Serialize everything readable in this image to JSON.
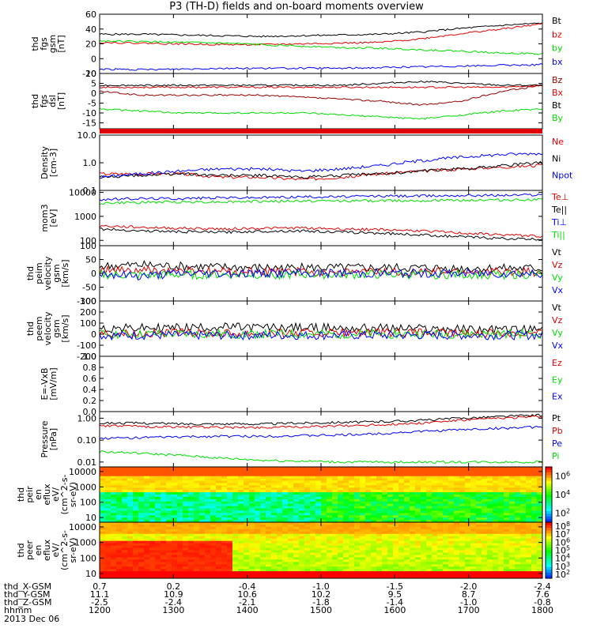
{
  "title": "P3 (TH-D) fields and on-board moments overview",
  "date_label": "2013 Dec 06",
  "ephemeris": {
    "rows": [
      {
        "label": "thd_X-GSM",
        "values": [
          "0.7",
          "0.2",
          "-0.4",
          "-1.0",
          "-1.5",
          "-2.0",
          "-2.4"
        ]
      },
      {
        "label": "thd_Y-GSM",
        "values": [
          "11.1",
          "10.9",
          "10.6",
          "10.2",
          "9.5",
          "8.7",
          "7.6"
        ]
      },
      {
        "label": "thd_Z-GSM",
        "values": [
          "-2.5",
          "-2.4",
          "-2.1",
          "-1.8",
          "-1.4",
          "-1.0",
          "-0.8"
        ]
      },
      {
        "label": "hhmm",
        "values": [
          "1200",
          "1300",
          "1400",
          "1500",
          "1600",
          "1700",
          "1800"
        ]
      }
    ]
  },
  "colors": {
    "black": "#000000",
    "red": "#e00000",
    "green": "#00dd00",
    "blue": "#0000ff",
    "darkred": "#990000"
  },
  "chart_data": [
    {
      "type": "line",
      "id": "fgs_gsm",
      "ylabel": [
        "thd",
        "fgs",
        "gsm",
        "[nT]"
      ],
      "ylim": [
        -20,
        60
      ],
      "scale": "linear",
      "yticks": [
        "-20",
        "0",
        "20",
        "40",
        "60"
      ],
      "series": [
        {
          "name": "Bt",
          "color": "#000000",
          "values": [
            33,
            33,
            32,
            31,
            30,
            31,
            32,
            33,
            36,
            41,
            45,
            48
          ]
        },
        {
          "name": "bz",
          "color": "#e00000",
          "values": [
            22,
            21,
            20,
            19,
            19,
            20,
            21,
            22,
            27,
            34,
            40,
            47
          ]
        },
        {
          "name": "by",
          "color": "#00dd00",
          "values": [
            24,
            23,
            22,
            21,
            19,
            17,
            15,
            14,
            12,
            10,
            8,
            6
          ]
        },
        {
          "name": "bx",
          "color": "#0000ff",
          "values": [
            -14,
            -15,
            -14,
            -13,
            -13,
            -13,
            -13,
            -12,
            -11,
            -10,
            -9,
            -8
          ]
        }
      ]
    },
    {
      "type": "line",
      "id": "fgs_dsl",
      "ylabel": [
        "thd",
        "fgs",
        "dsl",
        "[nT]"
      ],
      "ylim": [
        -18,
        10
      ],
      "scale": "linear",
      "yticks": [
        "-15",
        "-10",
        "-5",
        "0",
        "5",
        "10"
      ],
      "series": [
        {
          "name": "Bz",
          "color": "#990000",
          "values": [
            1,
            -1,
            -1,
            -1,
            -1,
            -2,
            -3,
            -4,
            -6,
            -4,
            1,
            4
          ]
        },
        {
          "name": "Bx",
          "color": "#e00000",
          "values": [
            3,
            3,
            3,
            3,
            3,
            3,
            3,
            3,
            3,
            3,
            3,
            4
          ]
        },
        {
          "name": "Bt",
          "color": "#000000",
          "values": [
            4,
            4,
            4,
            4,
            4,
            4,
            4,
            5,
            6,
            5,
            4,
            4
          ]
        },
        {
          "name": "By",
          "color": "#00dd00",
          "values": [
            -8,
            -9,
            -10,
            -10,
            -10,
            -10,
            -11,
            -12,
            -13,
            -11,
            -9,
            -8
          ]
        }
      ]
    },
    {
      "type": "line",
      "id": "density",
      "ylabel": [
        "Density",
        "[cm-3]"
      ],
      "ylim": [
        0.1,
        10
      ],
      "scale": "log",
      "yticks": [
        "0.1",
        "1.0",
        "10.0"
      ],
      "series": [
        {
          "name": "Ne",
          "color": "#e00000",
          "values": [
            0.4,
            0.4,
            0.4,
            0.3,
            0.3,
            0.25,
            0.3,
            0.4,
            0.5,
            0.6,
            0.7,
            0.8
          ]
        },
        {
          "name": "Ni",
          "color": "#000000",
          "values": [
            0.3,
            0.35,
            0.4,
            0.35,
            0.35,
            0.3,
            0.35,
            0.4,
            0.5,
            0.6,
            0.8,
            1.0
          ]
        },
        {
          "name": "Npot",
          "color": "#0000ff",
          "values": [
            0.3,
            0.4,
            0.5,
            0.6,
            0.6,
            0.5,
            0.6,
            0.8,
            1.2,
            1.6,
            2.0,
            2.2
          ]
        }
      ]
    },
    {
      "type": "line",
      "id": "temperature",
      "ylabel": [
        "mom3",
        "[eV]"
      ],
      "ylim": [
        60,
        12000
      ],
      "scale": "log",
      "yticks": [
        "100",
        "1000",
        "10000"
      ],
      "series": [
        {
          "name": "Te⊥",
          "color": "#e00000",
          "values": [
            400,
            350,
            320,
            300,
            320,
            330,
            300,
            280,
            250,
            200,
            170,
            150
          ]
        },
        {
          "name": "Te||",
          "color": "#000000",
          "values": [
            300,
            250,
            230,
            220,
            240,
            250,
            220,
            200,
            170,
            140,
            120,
            110
          ]
        },
        {
          "name": "Ti⊥",
          "color": "#0000ff",
          "values": [
            5000,
            5500,
            5500,
            6000,
            6000,
            6500,
            6500,
            7000,
            7000,
            7500,
            7500,
            8000
          ]
        },
        {
          "name": "Ti||",
          "color": "#00dd00",
          "values": [
            3500,
            3800,
            4000,
            4000,
            4200,
            4300,
            4400,
            4500,
            4600,
            4700,
            4800,
            5000
          ]
        }
      ]
    },
    {
      "type": "line",
      "id": "peim_velocity",
      "ylabel": [
        "thd",
        "peim",
        "velocity",
        "gsm",
        "[km/s]"
      ],
      "ylim": [
        -100,
        100
      ],
      "scale": "linear",
      "yticks": [
        "-100",
        "-50",
        "0",
        "50",
        "100"
      ],
      "series": [
        {
          "name": "Vt",
          "color": "#000000",
          "values": [
            25,
            30,
            25,
            22,
            20,
            20,
            20,
            20,
            20,
            18,
            18,
            18
          ]
        },
        {
          "name": "Vz",
          "color": "#e00000",
          "values": [
            10,
            10,
            8,
            6,
            5,
            5,
            5,
            5,
            5,
            5,
            5,
            5
          ]
        },
        {
          "name": "Vy",
          "color": "#00dd00",
          "values": [
            -5,
            -8,
            -5,
            -5,
            -5,
            -5,
            -5,
            -5,
            -5,
            -5,
            -5,
            -5
          ]
        },
        {
          "name": "Vx",
          "color": "#0000ff",
          "values": [
            0,
            -10,
            0,
            0,
            0,
            0,
            0,
            0,
            0,
            0,
            0,
            0
          ]
        }
      ]
    },
    {
      "type": "line",
      "id": "peem_velocity",
      "ylabel": [
        "thd",
        "peem",
        "velocity",
        "gsm",
        "[km/s]"
      ],
      "ylim": [
        -200,
        300
      ],
      "scale": "linear",
      "yticks": [
        "-200",
        "-100",
        "0",
        "100",
        "200",
        "300"
      ],
      "series": [
        {
          "name": "Vt",
          "color": "#000000",
          "values": [
            50,
            55,
            60,
            65,
            60,
            60,
            55,
            55,
            50,
            45,
            40,
            40
          ]
        },
        {
          "name": "Vz",
          "color": "#e00000",
          "values": [
            10,
            10,
            10,
            10,
            10,
            10,
            10,
            10,
            10,
            10,
            10,
            10
          ]
        },
        {
          "name": "Vy",
          "color": "#00dd00",
          "values": [
            0,
            0,
            0,
            0,
            0,
            0,
            0,
            0,
            0,
            0,
            0,
            0
          ]
        },
        {
          "name": "Vx",
          "color": "#0000ff",
          "values": [
            -10,
            -10,
            -10,
            -10,
            -10,
            -10,
            -10,
            -10,
            -10,
            -10,
            -10,
            -10
          ]
        }
      ]
    },
    {
      "type": "line",
      "id": "efield",
      "ylabel": [
        "E=-VxB",
        "[mV/m]"
      ],
      "ylim": [
        0,
        1
      ],
      "scale": "linear",
      "yticks": [
        "0.0",
        "0.2",
        "0.4",
        "0.6",
        "0.8",
        "1.0"
      ],
      "series": [
        {
          "name": "Ez",
          "color": "#e00000",
          "values": []
        },
        {
          "name": "Ey",
          "color": "#00dd00",
          "values": []
        },
        {
          "name": "Ex",
          "color": "#0000ff",
          "values": []
        }
      ]
    },
    {
      "type": "line",
      "id": "pressure",
      "ylabel": [
        "Pressure",
        "[nPa]"
      ],
      "ylim": [
        0.006,
        2
      ],
      "scale": "log",
      "yticks": [
        "0.01",
        "0.10",
        "1.00"
      ],
      "series": [
        {
          "name": "Pt",
          "color": "#000000",
          "values": [
            0.6,
            0.6,
            0.55,
            0.55,
            0.55,
            0.6,
            0.65,
            0.7,
            0.8,
            1.0,
            1.2,
            1.4
          ]
        },
        {
          "name": "Pb",
          "color": "#e00000",
          "values": [
            0.45,
            0.42,
            0.4,
            0.38,
            0.38,
            0.4,
            0.45,
            0.5,
            0.6,
            0.8,
            1.0,
            1.2
          ]
        },
        {
          "name": "Pe",
          "color": "#0000ff",
          "values": [
            0.12,
            0.13,
            0.14,
            0.15,
            0.15,
            0.16,
            0.17,
            0.2,
            0.25,
            0.3,
            0.35,
            0.4
          ]
        },
        {
          "name": "Pi",
          "color": "#00dd00",
          "values": [
            0.03,
            0.025,
            0.02,
            0.015,
            0.012,
            0.011,
            0.01,
            0.01,
            0.01,
            0.01,
            0.01,
            0.01
          ]
        }
      ]
    },
    {
      "type": "heatmap",
      "id": "peir_spec",
      "ylabel": [
        "thd",
        "peir",
        "en",
        "eflux",
        "eV/",
        "(cm^2-s-",
        "sr-eV)"
      ],
      "ylim": [
        5,
        20000
      ],
      "scale": "log",
      "yticks": [
        "10",
        "100",
        "1000",
        "10000"
      ],
      "colorbar": {
        "ticks": [
          "10^2",
          "10^4",
          "10^6"
        ]
      }
    },
    {
      "type": "heatmap",
      "id": "peer_spec",
      "ylabel": [
        "thd",
        "peer",
        "en",
        "eflux",
        "eV/",
        "(cm^2-s-",
        "sr-eV)"
      ],
      "ylim": [
        5,
        20000
      ],
      "scale": "log",
      "yticks": [
        "10",
        "100",
        "1000",
        "10000"
      ],
      "colorbar": {
        "ticks": [
          "10^2",
          "10^3",
          "10^4",
          "10^5",
          "10^6",
          "10^7",
          "10^8"
        ]
      }
    }
  ]
}
